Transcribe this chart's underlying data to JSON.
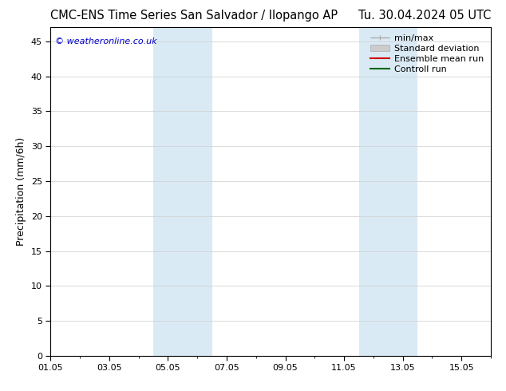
{
  "title_left": "CMC-ENS Time Series San Salvador / Ilopango AP",
  "title_right": "Tu. 30.04.2024 05 UTC",
  "ylabel": "Precipitation (mm/6h)",
  "watermark": "© weatheronline.co.uk",
  "watermark_color": "#0000cc",
  "ylim": [
    0,
    47
  ],
  "yticks": [
    0,
    5,
    10,
    15,
    20,
    25,
    30,
    35,
    40,
    45
  ],
  "xlim_days": 15,
  "xtick_labels": [
    "01.05",
    "03.05",
    "05.05",
    "07.05",
    "09.05",
    "11.05",
    "13.05",
    "15.05"
  ],
  "xtick_positions_days": [
    0,
    2,
    4,
    6,
    8,
    10,
    12,
    14
  ],
  "shaded_bands": [
    {
      "xstart_days": 3.5,
      "xend_days": 5.5
    },
    {
      "xstart_days": 10.5,
      "xend_days": 12.5
    }
  ],
  "band_color": "#daeaf5",
  "background_color": "#ffffff",
  "plot_bg_color": "#ffffff",
  "legend_items": [
    {
      "label": "min/max",
      "color": "#aaaaaa",
      "lw": 1.0
    },
    {
      "label": "Standard deviation",
      "facecolor": "#cccccc",
      "edgecolor": "#aaaaaa"
    },
    {
      "label": "Ensemble mean run",
      "color": "#cc0000",
      "lw": 1.5
    },
    {
      "label": "Controll run",
      "color": "#006600",
      "lw": 1.5
    }
  ],
  "title_fontsize": 10.5,
  "label_fontsize": 9,
  "tick_fontsize": 8,
  "legend_fontsize": 8,
  "watermark_fontsize": 8
}
